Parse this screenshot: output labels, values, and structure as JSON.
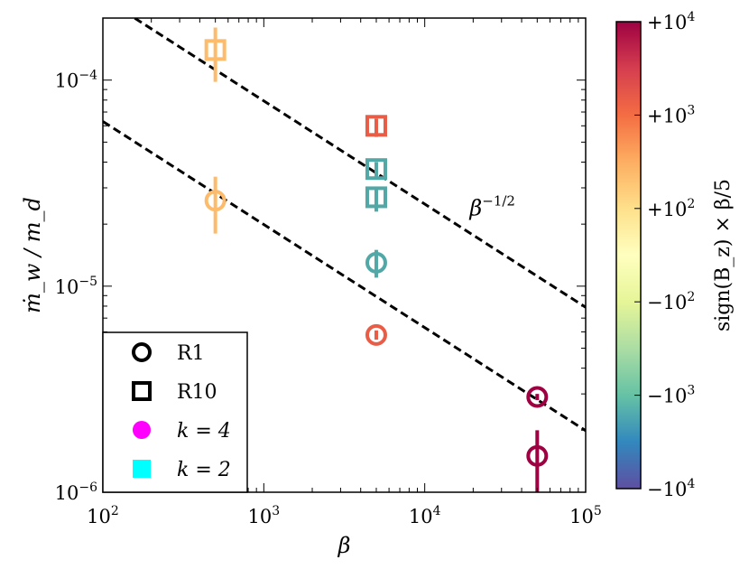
{
  "chart_data": {
    "type": "scatter",
    "xlabel": "β",
    "ylabel": "ṁ_w / m_d",
    "xscale": "log",
    "yscale": "log",
    "xlim": [
      100,
      100000
    ],
    "ylim": [
      1e-06,
      0.0002
    ],
    "x_ticks": [
      {
        "value": 100,
        "base": "10",
        "exp": "2"
      },
      {
        "value": 1000,
        "base": "10",
        "exp": "3"
      },
      {
        "value": 10000,
        "base": "10",
        "exp": "4"
      },
      {
        "value": 100000,
        "base": "10",
        "exp": "5"
      }
    ],
    "y_ticks": [
      {
        "value": 1e-06,
        "base": "10",
        "exp": "−6"
      },
      {
        "value": 1e-05,
        "base": "10",
        "exp": "−5"
      },
      {
        "value": 0.0001,
        "base": "10",
        "exp": "−4"
      }
    ],
    "reference_lines": [
      {
        "slope": -0.5,
        "x": [
          100,
          100000
        ],
        "y": [
          6.3e-05,
          1.99e-06
        ],
        "style": "dashed"
      },
      {
        "slope": -0.5,
        "x": [
          100,
          100000
        ],
        "y": [
          0.000251,
          7.9e-06
        ],
        "style": "dashed"
      }
    ],
    "annotation": {
      "base": "β",
      "exp": "−1/2",
      "x": 19000,
      "y": 2.2e-05
    },
    "series": [
      {
        "name": "R1",
        "marker": "circle",
        "points": [
          {
            "x": 500,
            "y": 2.6e-05,
            "yerr_low": 1.8e-05,
            "yerr_high": 3.4e-05,
            "color": "#fdbb6c"
          },
          {
            "x": 5000,
            "y": 1.3e-05,
            "yerr_low": 1.1e-05,
            "yerr_high": 1.5e-05,
            "color": "#52a8a6"
          },
          {
            "x": 5000,
            "y": 5.8e-06,
            "yerr_low": 5.5e-06,
            "yerr_high": 6.1e-06,
            "color": "#e95d47"
          },
          {
            "x": 50000,
            "y": 2.9e-06,
            "yerr_low": 2.8e-06,
            "yerr_high": 3e-06,
            "color": "#9e0142"
          },
          {
            "x": 50000,
            "y": 1.5e-06,
            "yerr_low": 9e-07,
            "yerr_high": 2e-06,
            "color": "#9e0142"
          }
        ]
      },
      {
        "name": "R10",
        "marker": "square",
        "points": [
          {
            "x": 500,
            "y": 0.00014,
            "yerr_low": 9.8e-05,
            "yerr_high": 0.00018,
            "color": "#fdbb6c"
          },
          {
            "x": 5000,
            "y": 6e-05,
            "yerr_low": 5.3e-05,
            "yerr_high": 6.5e-05,
            "color": "#e95d47"
          },
          {
            "x": 5000,
            "y": 3.7e-05,
            "yerr_low": 3.3e-05,
            "yerr_high": 4e-05,
            "color": "#52a8a6"
          },
          {
            "x": 5000,
            "y": 2.7e-05,
            "yerr_low": 2.3e-05,
            "yerr_high": 3e-05,
            "color": "#52a8a6"
          }
        ]
      }
    ],
    "legend": {
      "location": "lower left",
      "entries": [
        {
          "label": "R1",
          "marker": "circle-open",
          "color": "#000000"
        },
        {
          "label": "R10",
          "marker": "square-open",
          "color": "#000000"
        },
        {
          "label": "k = 4",
          "marker": "circle-filled",
          "color": "#ff00ff"
        },
        {
          "label": "k = 2",
          "marker": "square-filled",
          "color": "#00ffff"
        }
      ]
    },
    "colorbar": {
      "label": "sign(B_z) × β/5",
      "colormap": "Spectral",
      "colors": [
        "#5e4fa2",
        "#3288bd",
        "#66c2a5",
        "#abdda4",
        "#e6f598",
        "#ffffbf",
        "#fee08b",
        "#fdae61",
        "#f46d43",
        "#d53e4f",
        "#9e0142"
      ],
      "ticks": [
        {
          "sign": "+",
          "base": "10",
          "exp": "4"
        },
        {
          "sign": "+",
          "base": "10",
          "exp": "3"
        },
        {
          "sign": "+",
          "base": "10",
          "exp": "2"
        },
        {
          "sign": "−",
          "base": "10",
          "exp": "2"
        },
        {
          "sign": "−",
          "base": "10",
          "exp": "3"
        },
        {
          "sign": "−",
          "base": "10",
          "exp": "4"
        }
      ]
    }
  }
}
